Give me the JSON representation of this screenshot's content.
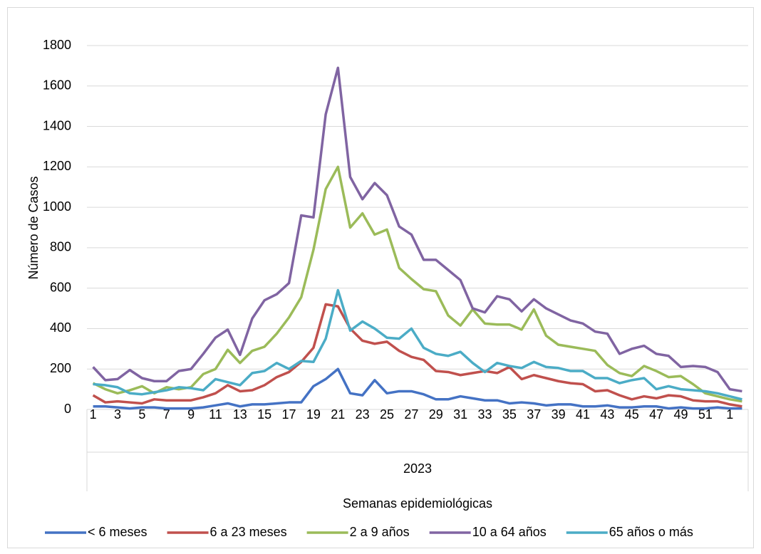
{
  "chart_data": {
    "type": "line",
    "y_label": "Número de Casos",
    "x_label": "Semanas epidemiológicas",
    "group_label": "2023",
    "categories": [
      "1",
      null,
      "3",
      null,
      "5",
      null,
      "7",
      null,
      "9",
      null,
      "11",
      null,
      "13",
      null,
      "15",
      null,
      "17",
      null,
      "19",
      null,
      "21",
      null,
      "23",
      null,
      "25",
      null,
      "27",
      null,
      "29",
      null,
      "31",
      null,
      "33",
      null,
      "35",
      null,
      "37",
      null,
      "39",
      null,
      "41",
      null,
      "43",
      null,
      "45",
      null,
      "47",
      null,
      "49",
      null,
      "51",
      null,
      "1",
      null
    ],
    "ylim": [
      0,
      1800
    ],
    "yticks": [
      0,
      200,
      400,
      600,
      800,
      1000,
      1200,
      1400,
      1600,
      1800
    ],
    "grid": true,
    "legend": "bottom",
    "series": [
      {
        "name": "< 6 meses",
        "color": "#4472c4",
        "values": [
          15,
          15,
          10,
          5,
          10,
          10,
          5,
          5,
          5,
          10,
          20,
          30,
          15,
          25,
          25,
          30,
          35,
          35,
          115,
          150,
          200,
          80,
          70,
          145,
          80,
          90,
          90,
          75,
          50,
          50,
          65,
          55,
          45,
          45,
          30,
          35,
          30,
          20,
          25,
          25,
          15,
          15,
          20,
          10,
          10,
          15,
          15,
          5,
          10,
          5,
          5,
          10,
          5,
          5
        ]
      },
      {
        "name": "6 a 23 meses",
        "color": "#c0504d",
        "values": [
          70,
          35,
          40,
          35,
          30,
          50,
          45,
          45,
          45,
          60,
          80,
          120,
          90,
          95,
          120,
          160,
          185,
          235,
          305,
          520,
          510,
          400,
          340,
          325,
          335,
          290,
          260,
          245,
          190,
          185,
          170,
          180,
          190,
          180,
          210,
          150,
          170,
          155,
          140,
          130,
          125,
          90,
          95,
          70,
          50,
          65,
          55,
          70,
          65,
          45,
          40,
          40,
          25,
          15
        ]
      },
      {
        "name": "2 a 9 años",
        "color": "#9bbb59",
        "values": [
          130,
          100,
          80,
          95,
          115,
          80,
          110,
          100,
          110,
          175,
          200,
          295,
          230,
          290,
          310,
          375,
          455,
          555,
          790,
          1090,
          1200,
          900,
          970,
          865,
          890,
          700,
          645,
          595,
          585,
          465,
          415,
          495,
          425,
          420,
          420,
          395,
          495,
          365,
          320,
          310,
          300,
          290,
          220,
          180,
          165,
          215,
          190,
          160,
          165,
          125,
          80,
          65,
          50,
          40
        ]
      },
      {
        "name": "10 a 64 años",
        "color": "#8064a2",
        "values": [
          210,
          145,
          150,
          195,
          155,
          140,
          140,
          190,
          200,
          275,
          355,
          395,
          270,
          450,
          540,
          570,
          625,
          960,
          950,
          1460,
          1690,
          1150,
          1040,
          1120,
          1060,
          905,
          865,
          740,
          740,
          690,
          640,
          500,
          480,
          560,
          545,
          485,
          545,
          500,
          470,
          440,
          425,
          385,
          375,
          275,
          300,
          315,
          275,
          265,
          210,
          215,
          210,
          185,
          100,
          90
        ]
      },
      {
        "name": "65 años o más",
        "color": "#4bacc6",
        "values": [
          125,
          120,
          110,
          80,
          75,
          85,
          95,
          110,
          105,
          95,
          150,
          135,
          120,
          180,
          190,
          230,
          200,
          240,
          235,
          350,
          590,
          390,
          435,
          400,
          355,
          350,
          400,
          305,
          275,
          265,
          285,
          230,
          185,
          230,
          215,
          205,
          235,
          210,
          205,
          190,
          190,
          155,
          155,
          130,
          145,
          155,
          100,
          115,
          100,
          95,
          90,
          80,
          65,
          50
        ]
      }
    ]
  }
}
